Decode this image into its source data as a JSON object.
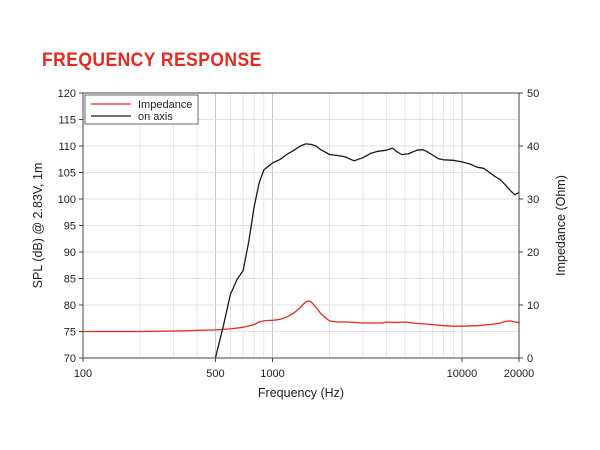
{
  "page": {
    "heading": "FREQUENCY RESPONSE"
  },
  "colors": {
    "heading": "#e8281e",
    "impedance": "#e8281e",
    "on_axis": "#1a1a1a",
    "grid": "#d9d9d9"
  },
  "chart_data": {
    "type": "line",
    "title": "",
    "xlabel": "Frequency (Hz)",
    "ylabel": "SPL (dB) @ 2.83V, 1m",
    "y2label": "Impedance (Ohm)",
    "xscale": "log",
    "xlim": [
      100,
      20000
    ],
    "ylim": [
      70,
      120
    ],
    "y2lim": [
      0,
      50
    ],
    "x_ticks": [
      100,
      500,
      1000,
      10000,
      20000
    ],
    "x_tick_labels": [
      "100",
      "500",
      "1000",
      "10000",
      "20000"
    ],
    "y_ticks": [
      70,
      75,
      80,
      85,
      90,
      95,
      100,
      105,
      110,
      115,
      120
    ],
    "y2_ticks": [
      0,
      10,
      20,
      30,
      40,
      50
    ],
    "grid": true,
    "legend": {
      "position": "top-left",
      "entries": [
        "Impedance",
        "on axis"
      ]
    },
    "series": [
      {
        "name": "Impedance",
        "axis": "right",
        "color": "#e8281e",
        "x": [
          100,
          200,
          300,
          400,
          500,
          600,
          700,
          800,
          850,
          900,
          950,
          1000,
          1100,
          1200,
          1300,
          1400,
          1450,
          1500,
          1550,
          1600,
          1700,
          1800,
          1900,
          2000,
          2200,
          2500,
          3000,
          3500,
          3800,
          4000,
          4500,
          5000,
          5500,
          6000,
          7000,
          8000,
          9000,
          10000,
          12000,
          14000,
          16000,
          17000,
          18000,
          19000,
          20000
        ],
        "y": [
          5.0,
          5.0,
          5.1,
          5.2,
          5.3,
          5.5,
          5.8,
          6.3,
          6.8,
          7.0,
          7.1,
          7.1,
          7.3,
          7.8,
          8.5,
          9.5,
          10.1,
          10.6,
          10.8,
          10.6,
          9.5,
          8.4,
          7.6,
          7.0,
          6.8,
          6.8,
          6.6,
          6.6,
          6.6,
          6.8,
          6.7,
          6.8,
          6.6,
          6.5,
          6.3,
          6.1,
          6.0,
          6.0,
          6.1,
          6.3,
          6.6,
          6.9,
          7.0,
          6.8,
          6.7
        ]
      },
      {
        "name": "on axis",
        "axis": "left",
        "color": "#1a1a1a",
        "x": [
          500,
          550,
          600,
          650,
          700,
          750,
          800,
          850,
          900,
          1000,
          1100,
          1200,
          1300,
          1400,
          1500,
          1600,
          1700,
          1800,
          2000,
          2200,
          2400,
          2700,
          3000,
          3300,
          3600,
          4000,
          4300,
          4500,
          4800,
          5200,
          5800,
          6200,
          6500,
          7000,
          7500,
          8000,
          9000,
          10000,
          11000,
          12000,
          13000,
          14000,
          15000,
          16000,
          17000,
          18000,
          19000,
          20000
        ],
        "y": [
          70.0,
          76.0,
          82.0,
          84.8,
          86.5,
          92.0,
          98.5,
          103.0,
          105.5,
          106.8,
          107.5,
          108.5,
          109.2,
          110.0,
          110.4,
          110.3,
          110.0,
          109.3,
          108.4,
          108.2,
          108.0,
          107.2,
          107.8,
          108.6,
          109.0,
          109.2,
          109.6,
          109.0,
          108.4,
          108.5,
          109.2,
          109.3,
          109.0,
          108.3,
          107.6,
          107.4,
          107.3,
          107.0,
          106.6,
          106.0,
          105.8,
          105.0,
          104.2,
          103.6,
          102.6,
          101.6,
          100.8,
          101.2
        ]
      }
    ]
  }
}
